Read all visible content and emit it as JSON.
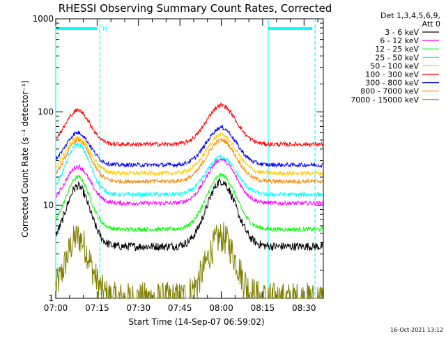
{
  "chart_data": {
    "type": "line",
    "title": "RHESSI Observing Summary Count Rates, Corrected",
    "xlabel": "Start Time (14-Sep-07 06:59:02)",
    "ylabel": "Corrected Count Rate (s⁻¹ detector⁻¹)",
    "x_range": [
      "07:00",
      "08:37"
    ],
    "ylim": [
      1,
      1000
    ],
    "y_scale": "log",
    "x_ticks": [
      "07:00",
      "07:15",
      "07:30",
      "07:45",
      "08:00",
      "08:15",
      "08:30"
    ],
    "y_ticks": [
      "1",
      "10",
      "100",
      "1000"
    ],
    "legend_header": [
      "Det 1,3,4,5,6,9,",
      "Att 0"
    ],
    "legend_position": "right",
    "footer_date": "16-Oct-2021 13:12",
    "night_marker_label": "N",
    "highlight_color": "#00ffff",
    "night_intervals": [
      [
        "07:00",
        "07:16"
      ],
      [
        "08:17",
        "08:34"
      ]
    ],
    "peak_times": [
      "07:08",
      "08:00"
    ],
    "series": [
      {
        "name": "3 - 6 keV",
        "color": "#000000",
        "values_peak": [
          16,
          18
        ],
        "base": 3.6
      },
      {
        "name": "6 - 12 keV",
        "color": "#ff00ff",
        "values_peak": [
          26,
          31
        ],
        "base": 10.5
      },
      {
        "name": "12 - 25 keV",
        "color": "#00ff00",
        "values_peak": [
          20,
          21
        ],
        "base": 5.5
      },
      {
        "name": "25 - 50 keV",
        "color": "#00ffff",
        "values_peak": [
          45,
          33
        ],
        "base": 13
      },
      {
        "name": "50 - 100 keV",
        "color": "#ffcc00",
        "values_peak": [
          53,
          57
        ],
        "base": 22
      },
      {
        "name": "100 - 300 keV",
        "color": "#ff0000",
        "values_peak": [
          104,
          118
        ],
        "base": 45
      },
      {
        "name": "300 - 800 keV",
        "color": "#0000ff",
        "values_peak": [
          60,
          68
        ],
        "base": 27
      },
      {
        "name": "800 - 7000 keV",
        "color": "#ff8800",
        "values_peak": [
          50,
          50
        ],
        "base": 18
      },
      {
        "name": "7000 - 15000 keV",
        "color": "#808000",
        "values_peak": [
          4.5,
          4.5
        ],
        "base": 1
      }
    ]
  }
}
